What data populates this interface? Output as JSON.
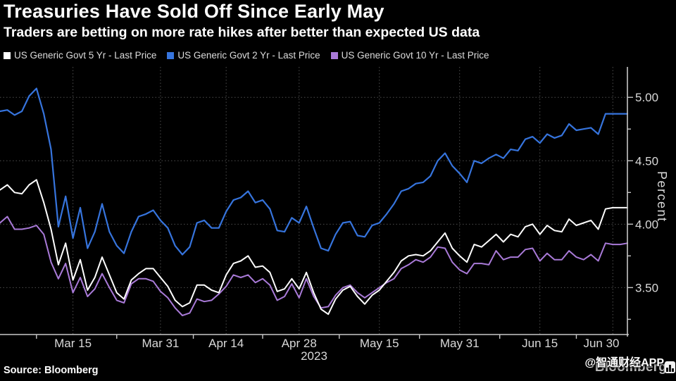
{
  "header": {
    "title": "Treasuries Have Sold Off Since Early May",
    "subtitle": "Traders are betting on more rate hikes after better than expected US data"
  },
  "footer": {
    "source": "Source: Bloomberg",
    "watermark_bloomberg": "Bloomberg",
    "watermark_zhitong": "@智通财经APP"
  },
  "colors": {
    "background": "#000000",
    "title_text": "#ffffff",
    "axis_line": "#c7c7c7",
    "grid_line": "#4e4e4e",
    "tick_label": "#d9d9d9",
    "legend_text": "#dcdcdc",
    "series_5yr": "#ffffff",
    "series_2yr": "#3674dd",
    "series_10yr": "#a97ad8",
    "bloomberg_watermark": "#bababa"
  },
  "chart_data": {
    "type": "line",
    "title": "Treasuries Have Sold Off Since Early May",
    "subtitle": "Traders are betting on more rate hikes after better than expected US data",
    "ylabel": "Percent",
    "xlabel": "",
    "x_year_label": "2023",
    "grid": "dotted",
    "legend_position": "top",
    "ylim": [
      3.13,
      5.24
    ],
    "y_major_ticks": [
      3.5,
      4.0,
      4.5,
      5.0
    ],
    "y_minor_ticks": [
      3.25,
      3.75,
      4.25,
      4.75
    ],
    "x_ticks": [
      {
        "label": "Mar 15",
        "index": 10
      },
      {
        "label": "Mar 31",
        "index": 22
      },
      {
        "label": "Apr 14",
        "index": 31
      },
      {
        "label": "Apr 28",
        "index": 41
      },
      {
        "label": "May 15",
        "index": 52
      },
      {
        "label": "May 31",
        "index": 63
      },
      {
        "label": "Jun 15",
        "index": 74
      },
      {
        "label": "Jun 30",
        "index": 84
      }
    ],
    "x_dates": [
      "2023-03-01",
      "2023-03-02",
      "2023-03-03",
      "2023-03-06",
      "2023-03-07",
      "2023-03-08",
      "2023-03-09",
      "2023-03-10",
      "2023-03-13",
      "2023-03-14",
      "2023-03-15",
      "2023-03-16",
      "2023-03-17",
      "2023-03-20",
      "2023-03-21",
      "2023-03-22",
      "2023-03-23",
      "2023-03-24",
      "2023-03-27",
      "2023-03-28",
      "2023-03-29",
      "2023-03-30",
      "2023-03-31",
      "2023-04-03",
      "2023-04-04",
      "2023-04-05",
      "2023-04-06",
      "2023-04-10",
      "2023-04-11",
      "2023-04-12",
      "2023-04-13",
      "2023-04-14",
      "2023-04-17",
      "2023-04-18",
      "2023-04-19",
      "2023-04-20",
      "2023-04-21",
      "2023-04-24",
      "2023-04-25",
      "2023-04-26",
      "2023-04-27",
      "2023-04-28",
      "2023-05-01",
      "2023-05-02",
      "2023-05-03",
      "2023-05-04",
      "2023-05-05",
      "2023-05-08",
      "2023-05-09",
      "2023-05-10",
      "2023-05-11",
      "2023-05-12",
      "2023-05-15",
      "2023-05-16",
      "2023-05-17",
      "2023-05-18",
      "2023-05-19",
      "2023-05-22",
      "2023-05-23",
      "2023-05-24",
      "2023-05-25",
      "2023-05-26",
      "2023-05-30",
      "2023-05-31",
      "2023-06-01",
      "2023-06-02",
      "2023-06-05",
      "2023-06-06",
      "2023-06-07",
      "2023-06-08",
      "2023-06-09",
      "2023-06-12",
      "2023-06-13",
      "2023-06-14",
      "2023-06-15",
      "2023-06-16",
      "2023-06-20",
      "2023-06-21",
      "2023-06-22",
      "2023-06-23",
      "2023-06-26",
      "2023-06-27",
      "2023-06-28",
      "2023-06-29",
      "2023-06-30",
      "2023-07-03",
      "2023-07-05"
    ],
    "series": [
      {
        "id": "5yr",
        "name": "US Generic Govt 5 Yr - Last Price",
        "color": "#ffffff",
        "values": [
          4.27,
          4.31,
          4.25,
          4.24,
          4.31,
          4.35,
          4.17,
          3.96,
          3.68,
          3.85,
          3.56,
          3.72,
          3.48,
          3.58,
          3.74,
          3.6,
          3.46,
          3.41,
          3.56,
          3.61,
          3.65,
          3.65,
          3.58,
          3.51,
          3.4,
          3.35,
          3.38,
          3.52,
          3.52,
          3.48,
          3.46,
          3.6,
          3.69,
          3.71,
          3.75,
          3.66,
          3.67,
          3.62,
          3.47,
          3.49,
          3.57,
          3.49,
          3.62,
          3.46,
          3.33,
          3.29,
          3.41,
          3.48,
          3.51,
          3.43,
          3.37,
          3.44,
          3.48,
          3.55,
          3.62,
          3.71,
          3.75,
          3.76,
          3.75,
          3.79,
          3.86,
          3.93,
          3.81,
          3.75,
          3.7,
          3.84,
          3.82,
          3.87,
          3.92,
          3.86,
          3.92,
          3.9,
          3.98,
          4.0,
          3.92,
          3.99,
          3.95,
          3.94,
          4.04,
          3.99,
          4.01,
          4.03,
          3.96,
          4.12,
          4.13,
          4.13,
          4.13
        ]
      },
      {
        "id": "2yr",
        "name": "US Generic Govt 2 Yr - Last Price",
        "color": "#3674dd",
        "values": [
          4.89,
          4.9,
          4.86,
          4.89,
          5.01,
          5.07,
          4.87,
          4.59,
          3.98,
          4.22,
          3.89,
          4.13,
          3.81,
          3.94,
          4.16,
          3.94,
          3.83,
          3.77,
          3.94,
          4.06,
          4.08,
          4.11,
          4.03,
          3.97,
          3.83,
          3.76,
          3.82,
          4.01,
          4.03,
          3.97,
          3.97,
          4.1,
          4.19,
          4.21,
          4.26,
          4.17,
          4.19,
          4.12,
          3.95,
          3.94,
          4.05,
          4.01,
          4.14,
          3.97,
          3.81,
          3.79,
          3.92,
          4.01,
          4.02,
          3.91,
          3.9,
          3.99,
          4.01,
          4.08,
          4.16,
          4.26,
          4.28,
          4.32,
          4.33,
          4.38,
          4.5,
          4.56,
          4.46,
          4.4,
          4.33,
          4.5,
          4.48,
          4.52,
          4.55,
          4.52,
          4.59,
          4.58,
          4.67,
          4.69,
          4.64,
          4.71,
          4.68,
          4.7,
          4.79,
          4.74,
          4.75,
          4.76,
          4.71,
          4.87,
          4.87,
          4.87,
          4.87
        ]
      },
      {
        "id": "10yr",
        "name": "US Generic Govt 10 Yr - Last Price",
        "color": "#a97ad8",
        "values": [
          4.01,
          4.06,
          3.96,
          3.96,
          3.97,
          3.99,
          3.92,
          3.7,
          3.57,
          3.69,
          3.46,
          3.58,
          3.43,
          3.49,
          3.61,
          3.5,
          3.4,
          3.38,
          3.53,
          3.57,
          3.57,
          3.55,
          3.47,
          3.42,
          3.34,
          3.28,
          3.3,
          3.41,
          3.39,
          3.4,
          3.45,
          3.51,
          3.6,
          3.58,
          3.6,
          3.54,
          3.57,
          3.52,
          3.4,
          3.43,
          3.53,
          3.42,
          3.57,
          3.43,
          3.34,
          3.35,
          3.44,
          3.5,
          3.52,
          3.46,
          3.42,
          3.46,
          3.5,
          3.54,
          3.57,
          3.65,
          3.68,
          3.72,
          3.7,
          3.74,
          3.82,
          3.81,
          3.7,
          3.64,
          3.61,
          3.69,
          3.69,
          3.68,
          3.79,
          3.72,
          3.74,
          3.74,
          3.8,
          3.81,
          3.71,
          3.77,
          3.72,
          3.72,
          3.79,
          3.74,
          3.72,
          3.76,
          3.71,
          3.85,
          3.84,
          3.84,
          3.85
        ]
      }
    ]
  }
}
